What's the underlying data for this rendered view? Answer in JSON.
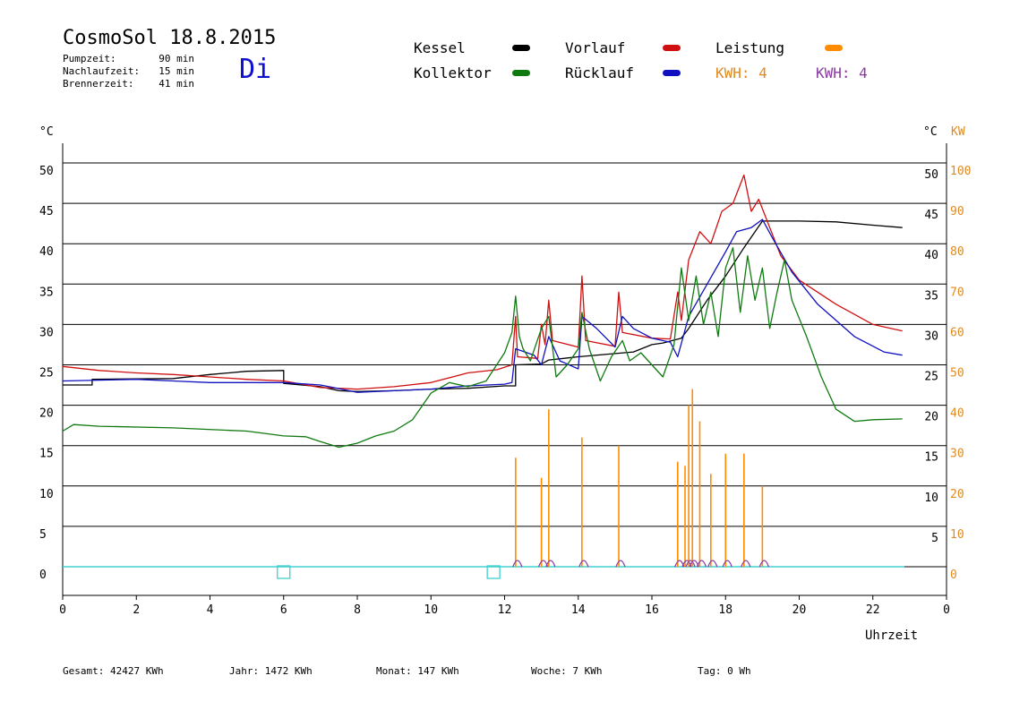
{
  "header": {
    "title": "CosmoSol 18.8.2015",
    "weekday": "Di",
    "info": [
      {
        "label": "Pumpzeit:",
        "value": "90 min"
      },
      {
        "label": "Nachlaufzeit:",
        "value": "15 min"
      },
      {
        "label": "Brennerzeit:",
        "value": "41 min"
      }
    ]
  },
  "legend": {
    "kessel": "Kessel",
    "kollektor": "Kollektor",
    "vorlauf": "Vorlauf",
    "ruecklauf": "Rücklauf",
    "leistung": "Leistung",
    "kwh_orange": "KWH: 4",
    "kwh_purple": "KWH: 4"
  },
  "colors": {
    "kessel": "#000000",
    "kollektor": "#107a10",
    "vorlauf": "#d01010",
    "ruecklauf": "#1010c0",
    "leistung": "#ff8c00",
    "kwh_orange": "#e08a20",
    "kwh_purple": "#8a3aa0",
    "baseline": "#40d0d0"
  },
  "axes": {
    "y_left_unit": "°C",
    "y_right_unit": "°C",
    "y_power_unit": "KW",
    "x_label": "Uhrzeit",
    "y_left_ticks": [
      "50",
      "45",
      "40",
      "35",
      "30",
      "25",
      "20",
      "15",
      "10",
      "5",
      "0"
    ],
    "y_right_ticks": [
      "50",
      "45",
      "40",
      "35",
      "30",
      "25",
      "20",
      "15",
      "10",
      "5"
    ],
    "y_power_ticks": [
      "100",
      "90",
      "80",
      "70",
      "60",
      "50",
      "40",
      "30",
      "20",
      "10",
      "0"
    ],
    "x_ticks": [
      "0",
      "2",
      "4",
      "6",
      "8",
      "10",
      "12",
      "14",
      "16",
      "18",
      "20",
      "22",
      "0"
    ]
  },
  "footer": [
    {
      "label": "Gesamt:",
      "value": "42427 KWh"
    },
    {
      "label": "Jahr:",
      "value": "1472 KWh"
    },
    {
      "label": "Monat:",
      "value": "147 KWh"
    },
    {
      "label": "Woche:",
      "value": "7 KWh"
    },
    {
      "label": "Tag:",
      "value": "0 Wh"
    }
  ],
  "chart_data": {
    "type": "line",
    "xlabel": "Uhrzeit",
    "ylabel": "°C",
    "xlim": [
      0,
      24
    ],
    "ylim": [
      0,
      50
    ],
    "y2lim": [
      0,
      100
    ],
    "grid": true,
    "legend_position": "top",
    "series": [
      {
        "name": "Kessel",
        "color_key": "kessel",
        "points": [
          [
            0,
            22.5
          ],
          [
            0.8,
            22.5
          ],
          [
            0.8,
            23.2
          ],
          [
            3,
            23.3
          ],
          [
            4,
            23.8
          ],
          [
            5,
            24.2
          ],
          [
            6,
            24.3
          ],
          [
            6,
            22.7
          ],
          [
            7,
            22.3
          ],
          [
            7.5,
            21.8
          ],
          [
            8,
            21.7
          ],
          [
            9,
            21.8
          ],
          [
            10,
            22.0
          ],
          [
            11,
            22.1
          ],
          [
            12,
            22.4
          ],
          [
            12.3,
            22.4
          ],
          [
            12.3,
            25.0
          ],
          [
            13,
            25.1
          ],
          [
            13.2,
            25.6
          ],
          [
            14,
            26.0
          ],
          [
            15,
            26.4
          ],
          [
            15.5,
            26.6
          ],
          [
            16,
            27.5
          ],
          [
            16.3,
            27.7
          ],
          [
            16.8,
            28.3
          ],
          [
            17,
            29.5
          ],
          [
            17.5,
            33.0
          ],
          [
            18,
            36.0
          ],
          [
            18.5,
            39.5
          ],
          [
            19,
            42.8
          ],
          [
            20,
            42.8
          ],
          [
            21,
            42.7
          ],
          [
            22,
            42.3
          ],
          [
            22.8,
            42.0
          ]
        ]
      },
      {
        "name": "Vorlauf",
        "color_key": "vorlauf",
        "points": [
          [
            0,
            24.8
          ],
          [
            1,
            24.3
          ],
          [
            2,
            24.0
          ],
          [
            3,
            23.8
          ],
          [
            4,
            23.5
          ],
          [
            5,
            23.2
          ],
          [
            6,
            23.0
          ],
          [
            7,
            22.2
          ],
          [
            8,
            22.0
          ],
          [
            9,
            22.3
          ],
          [
            10,
            22.8
          ],
          [
            11,
            24.0
          ],
          [
            11.8,
            24.4
          ],
          [
            12.2,
            25.0
          ],
          [
            12.3,
            31.0
          ],
          [
            12.35,
            26.0
          ],
          [
            12.9,
            25.8
          ],
          [
            13.0,
            30.0
          ],
          [
            13.1,
            27.5
          ],
          [
            13.2,
            33.0
          ],
          [
            13.3,
            28.0
          ],
          [
            14,
            27.2
          ],
          [
            14.1,
            36.0
          ],
          [
            14.2,
            28.0
          ],
          [
            15,
            27.3
          ],
          [
            15.1,
            34.0
          ],
          [
            15.2,
            29.0
          ],
          [
            16,
            28.3
          ],
          [
            16.5,
            28.2
          ],
          [
            16.7,
            34.0
          ],
          [
            16.8,
            30.5
          ],
          [
            17,
            38.0
          ],
          [
            17.3,
            41.5
          ],
          [
            17.6,
            40.0
          ],
          [
            17.9,
            44.0
          ],
          [
            18.2,
            45.0
          ],
          [
            18.5,
            48.5
          ],
          [
            18.7,
            44.0
          ],
          [
            18.9,
            45.5
          ],
          [
            19.2,
            42.0
          ],
          [
            19.5,
            38.5
          ],
          [
            20,
            35.5
          ],
          [
            21,
            32.5
          ],
          [
            22,
            30.0
          ],
          [
            22.8,
            29.2
          ]
        ]
      },
      {
        "name": "Rücklauf",
        "color_key": "ruecklauf",
        "points": [
          [
            0,
            23.0
          ],
          [
            2,
            23.2
          ],
          [
            3,
            23.0
          ],
          [
            4,
            22.8
          ],
          [
            6,
            22.8
          ],
          [
            7,
            22.5
          ],
          [
            8,
            21.6
          ],
          [
            9,
            21.8
          ],
          [
            10,
            22.0
          ],
          [
            11,
            22.4
          ],
          [
            12,
            22.6
          ],
          [
            12.2,
            22.8
          ],
          [
            12.3,
            27.0
          ],
          [
            12.8,
            26.2
          ],
          [
            13,
            25.0
          ],
          [
            13.2,
            28.5
          ],
          [
            13.5,
            25.5
          ],
          [
            14,
            24.5
          ],
          [
            14.1,
            31.0
          ],
          [
            14.5,
            29.5
          ],
          [
            15,
            27.2
          ],
          [
            15.2,
            31.0
          ],
          [
            15.5,
            29.5
          ],
          [
            16,
            28.3
          ],
          [
            16.5,
            27.8
          ],
          [
            16.7,
            26.0
          ],
          [
            17,
            31.0
          ],
          [
            17.5,
            35.0
          ],
          [
            18,
            39.0
          ],
          [
            18.3,
            41.5
          ],
          [
            18.7,
            42.0
          ],
          [
            19,
            43.0
          ],
          [
            19.3,
            40.5
          ],
          [
            19.8,
            36.5
          ],
          [
            20.5,
            32.5
          ],
          [
            21.5,
            28.5
          ],
          [
            22.3,
            26.6
          ],
          [
            22.8,
            26.2
          ]
        ]
      },
      {
        "name": "Kollektor",
        "color_key": "kollektor",
        "points": [
          [
            0,
            16.8
          ],
          [
            0.3,
            17.6
          ],
          [
            1,
            17.4
          ],
          [
            3,
            17.2
          ],
          [
            5,
            16.8
          ],
          [
            6,
            16.2
          ],
          [
            6.6,
            16.1
          ],
          [
            7,
            15.5
          ],
          [
            7.5,
            14.8
          ],
          [
            8,
            15.3
          ],
          [
            8.5,
            16.2
          ],
          [
            9,
            16.8
          ],
          [
            9.5,
            18.2
          ],
          [
            10,
            21.5
          ],
          [
            10.5,
            22.8
          ],
          [
            11,
            22.3
          ],
          [
            11.5,
            23.0
          ],
          [
            12,
            26.5
          ],
          [
            12.2,
            29.0
          ],
          [
            12.3,
            33.5
          ],
          [
            12.4,
            28.5
          ],
          [
            12.5,
            27.0
          ],
          [
            12.7,
            25.5
          ],
          [
            13,
            29.5
          ],
          [
            13.2,
            31.0
          ],
          [
            13.4,
            23.5
          ],
          [
            13.7,
            25.0
          ],
          [
            14,
            27.0
          ],
          [
            14.1,
            31.5
          ],
          [
            14.3,
            27.0
          ],
          [
            14.6,
            23.0
          ],
          [
            14.9,
            26.0
          ],
          [
            15.2,
            28.0
          ],
          [
            15.4,
            25.5
          ],
          [
            15.7,
            26.5
          ],
          [
            16,
            25.0
          ],
          [
            16.3,
            23.5
          ],
          [
            16.6,
            27.5
          ],
          [
            16.8,
            37.0
          ],
          [
            17.0,
            30.5
          ],
          [
            17.2,
            36.0
          ],
          [
            17.4,
            30.0
          ],
          [
            17.6,
            34.0
          ],
          [
            17.8,
            28.5
          ],
          [
            18.0,
            37.0
          ],
          [
            18.2,
            39.5
          ],
          [
            18.4,
            31.5
          ],
          [
            18.6,
            38.5
          ],
          [
            18.8,
            33.0
          ],
          [
            19.0,
            37.0
          ],
          [
            19.2,
            29.5
          ],
          [
            19.4,
            34.0
          ],
          [
            19.6,
            38.0
          ],
          [
            19.8,
            33.0
          ],
          [
            20.2,
            28.5
          ],
          [
            20.6,
            23.5
          ],
          [
            21,
            19.5
          ],
          [
            21.5,
            18.0
          ],
          [
            22,
            18.2
          ],
          [
            22.8,
            18.3
          ]
        ]
      }
    ],
    "power_series": {
      "name": "Leistung",
      "unit": "KW",
      "color_key": "leistung",
      "spikes": [
        [
          12.3,
          27
        ],
        [
          13.0,
          22
        ],
        [
          13.2,
          39
        ],
        [
          14.1,
          32
        ],
        [
          15.1,
          30
        ],
        [
          16.7,
          26
        ],
        [
          16.9,
          25
        ],
        [
          17.0,
          40
        ],
        [
          17.1,
          44
        ],
        [
          17.3,
          36
        ],
        [
          17.6,
          23
        ],
        [
          18.0,
          28
        ],
        [
          18.5,
          28
        ],
        [
          19.0,
          20
        ]
      ]
    },
    "markers": [
      {
        "x": 6.0,
        "kind": "square"
      },
      {
        "x": 11.7,
        "kind": "square"
      }
    ]
  }
}
